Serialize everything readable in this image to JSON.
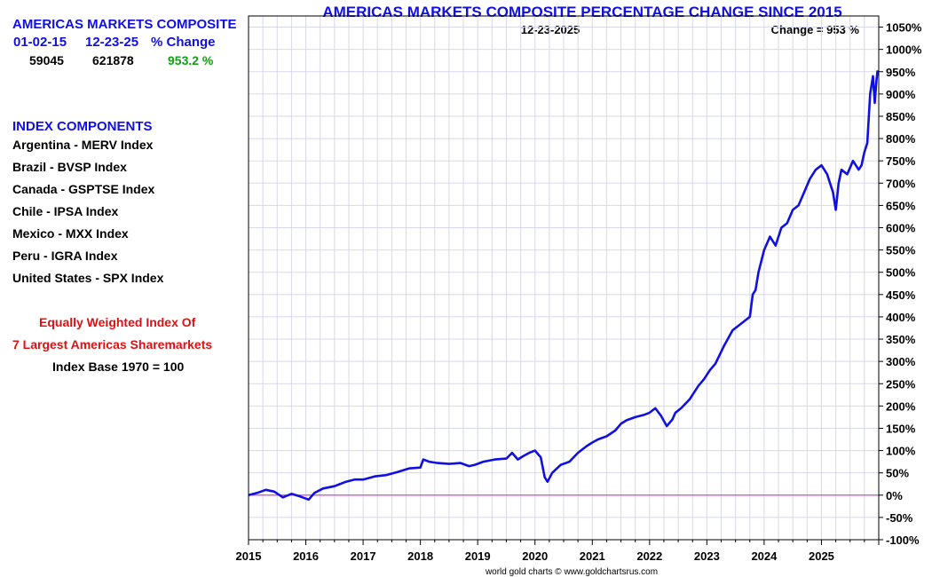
{
  "sidebar": {
    "composite_title": "AMERICAS MARKETS COMPOSITE",
    "col_start_date": "01-02-15",
    "col_end_date": "12-23-25",
    "col_change": "% Change",
    "start_value": "59045",
    "end_value": "621878",
    "change_value": "953.2 %",
    "components_title": "INDEX COMPONENTS",
    "components": [
      "Argentina - MERV Index",
      "Brazil - BVSP Index",
      "Canada - GSPTSE Index",
      "Chile - IPSA Index",
      "Mexico - MXX Index",
      "Peru - IGRA Index",
      "United States - SPX Index"
    ],
    "note_line1": "Equally Weighted Index Of",
    "note_line2": "7 Largest Americas Sharemarkets",
    "note_line3": "Index Base 1970 = 100"
  },
  "chart_data": {
    "type": "line",
    "title": "AMERICAS MARKETS COMPOSITE PERCENTAGE CHANGE SINCE 2015",
    "date_label": "12-23-2025",
    "change_label": "Change = 953 %",
    "footer": "world gold charts © www.goldchartsrus.com",
    "x_ticks": [
      "2015",
      "2016",
      "2017",
      "2018",
      "2019",
      "2020",
      "2021",
      "2022",
      "2023",
      "2024",
      "2025"
    ],
    "y_ticks": [
      "-100%",
      "-50%",
      "0%",
      "50%",
      "100%",
      "150%",
      "200%",
      "250%",
      "300%",
      "350%",
      "400%",
      "450%",
      "500%",
      "550%",
      "600%",
      "650%",
      "700%",
      "750%",
      "800%",
      "850%",
      "900%",
      "950%",
      "1000%",
      "1050%"
    ],
    "xlim": [
      2015,
      2026
    ],
    "ylim": [
      -100,
      1075
    ],
    "grid": true,
    "zero_line_color": "#e040e0",
    "series": [
      {
        "color": "#1010e0",
        "x": [
          2015.0,
          2015.15,
          2015.3,
          2015.45,
          2015.6,
          2015.75,
          2015.9,
          2016.05,
          2016.15,
          2016.3,
          2016.5,
          2016.7,
          2016.85,
          2017.0,
          2017.2,
          2017.4,
          2017.6,
          2017.8,
          2018.0,
          2018.05,
          2018.15,
          2018.3,
          2018.5,
          2018.7,
          2018.85,
          2018.95,
          2019.1,
          2019.3,
          2019.5,
          2019.6,
          2019.7,
          2019.8,
          2019.9,
          2020.0,
          2020.1,
          2020.17,
          2020.22,
          2020.3,
          2020.45,
          2020.6,
          2020.75,
          2020.9,
          2021.0,
          2021.1,
          2021.25,
          2021.4,
          2021.5,
          2021.6,
          2021.75,
          2021.9,
          2022.0,
          2022.1,
          2022.2,
          2022.3,
          2022.4,
          2022.45,
          2022.55,
          2022.7,
          2022.85,
          2022.95,
          2023.05,
          2023.15,
          2023.3,
          2023.45,
          2023.55,
          2023.65,
          2023.75,
          2023.8,
          2023.85,
          2023.9,
          2024.0,
          2024.1,
          2024.2,
          2024.3,
          2024.4,
          2024.5,
          2024.6,
          2024.7,
          2024.8,
          2024.9,
          2025.0,
          2025.1,
          2025.15,
          2025.2,
          2025.25,
          2025.3,
          2025.35,
          2025.45,
          2025.55,
          2025.65,
          2025.7,
          2025.75,
          2025.8,
          2025.85,
          2025.9,
          2025.93,
          2025.96,
          2025.98
        ],
        "y": [
          0,
          5,
          12,
          8,
          -5,
          3,
          -3,
          -10,
          5,
          15,
          20,
          30,
          35,
          35,
          42,
          45,
          52,
          60,
          62,
          80,
          75,
          72,
          70,
          72,
          65,
          68,
          75,
          80,
          82,
          95,
          80,
          88,
          95,
          100,
          85,
          40,
          30,
          50,
          68,
          75,
          95,
          110,
          118,
          125,
          132,
          145,
          160,
          168,
          175,
          180,
          185,
          195,
          178,
          155,
          170,
          185,
          195,
          215,
          245,
          260,
          280,
          295,
          335,
          370,
          380,
          390,
          400,
          450,
          460,
          500,
          550,
          580,
          560,
          600,
          610,
          640,
          650,
          680,
          710,
          730,
          740,
          720,
          700,
          680,
          640,
          700,
          730,
          720,
          750,
          730,
          740,
          770,
          790,
          900,
          940,
          880,
          930,
          953
        ]
      }
    ]
  }
}
